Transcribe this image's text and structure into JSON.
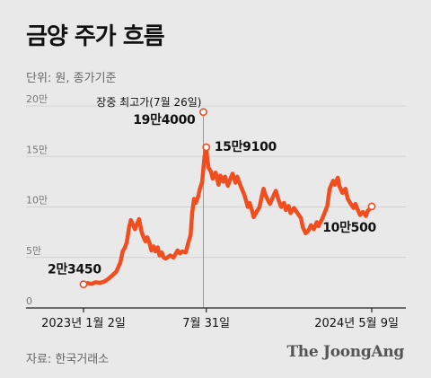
{
  "header": {
    "title": "금양 주가 흐름",
    "unit": "단위: 원, 종가기준"
  },
  "footer": {
    "source": "자료: 한국거래소",
    "logo": "The JoongAng"
  },
  "colors": {
    "line": "#f04e1f",
    "marker_fill": "#ffffff",
    "grid": "#d2d2d2",
    "axis": "#222222",
    "reference_line": "#999999"
  },
  "chart_data": {
    "type": "line",
    "title": "금양 주가 흐름",
    "unit": "단위: 원, 종가기준",
    "y_ticks": [
      {
        "value": 0,
        "label": "0"
      },
      {
        "value": 50000,
        "label": "5만"
      },
      {
        "value": 100000,
        "label": "10만"
      },
      {
        "value": 150000,
        "label": "15만"
      },
      {
        "value": 200000,
        "label": "20만"
      }
    ],
    "ylim": [
      0,
      200000
    ],
    "xlim": [
      "2023-01-02",
      "2024-05-09"
    ],
    "x_ticks": [
      {
        "date": "2023-01-02",
        "label": "2023년 1월 2일"
      },
      {
        "date": "2023-07-31",
        "label": "7월 31일"
      },
      {
        "date": "2024-05-09",
        "label": "2024년 5월 9일"
      }
    ],
    "grid": true,
    "series": [
      {
        "points": [
          [
            "2023-01-02",
            23450
          ],
          [
            "2023-01-09",
            24500
          ],
          [
            "2023-01-16",
            23800
          ],
          [
            "2023-01-23",
            25500
          ],
          [
            "2023-01-30",
            24800
          ],
          [
            "2023-02-06",
            26000
          ],
          [
            "2023-02-13",
            28500
          ],
          [
            "2023-02-20",
            32000
          ],
          [
            "2023-02-27",
            36000
          ],
          [
            "2023-03-06",
            45000
          ],
          [
            "2023-03-10",
            56000
          ],
          [
            "2023-03-14",
            60000
          ],
          [
            "2023-03-17",
            65000
          ],
          [
            "2023-03-21",
            80000
          ],
          [
            "2023-03-24",
            87000
          ],
          [
            "2023-03-28",
            82000
          ],
          [
            "2023-03-31",
            78000
          ],
          [
            "2023-04-04",
            84000
          ],
          [
            "2023-04-07",
            88000
          ],
          [
            "2023-04-11",
            76000
          ],
          [
            "2023-04-14",
            71000
          ],
          [
            "2023-04-18",
            66000
          ],
          [
            "2023-04-21",
            70000
          ],
          [
            "2023-04-25",
            64000
          ],
          [
            "2023-04-28",
            57000
          ],
          [
            "2023-05-02",
            61000
          ],
          [
            "2023-05-05",
            56000
          ],
          [
            "2023-05-09",
            60000
          ],
          [
            "2023-05-12",
            52000
          ],
          [
            "2023-05-16",
            55000
          ],
          [
            "2023-05-19",
            50000
          ],
          [
            "2023-05-23",
            49000
          ],
          [
            "2023-05-30",
            52000
          ],
          [
            "2023-06-05",
            50000
          ],
          [
            "2023-06-12",
            57000
          ],
          [
            "2023-06-16",
            54000
          ],
          [
            "2023-06-20",
            56000
          ],
          [
            "2023-06-26",
            55000
          ],
          [
            "2023-06-30",
            64000
          ],
          [
            "2023-07-04",
            72000
          ],
          [
            "2023-07-07",
            95000
          ],
          [
            "2023-07-10",
            108000
          ],
          [
            "2023-07-13",
            104000
          ],
          [
            "2023-07-17",
            110000
          ],
          [
            "2023-07-20",
            118000
          ],
          [
            "2023-07-24",
            125000
          ],
          [
            "2023-07-26",
            138000
          ],
          [
            "2023-07-28",
            150000
          ],
          [
            "2023-07-31",
            159100
          ],
          [
            "2023-08-02",
            146000
          ],
          [
            "2023-08-04",
            139000
          ],
          [
            "2023-08-08",
            135000
          ],
          [
            "2023-08-11",
            128000
          ],
          [
            "2023-08-16",
            134000
          ],
          [
            "2023-08-21",
            122000
          ],
          [
            "2023-08-24",
            131000
          ],
          [
            "2023-08-29",
            125000
          ],
          [
            "2023-09-01",
            130000
          ],
          [
            "2023-09-06",
            121000
          ],
          [
            "2023-09-11",
            129000
          ],
          [
            "2023-09-14",
            133000
          ],
          [
            "2023-09-19",
            124000
          ],
          [
            "2023-09-22",
            130000
          ],
          [
            "2023-09-27",
            122000
          ],
          [
            "2023-10-04",
            112000
          ],
          [
            "2023-10-10",
            100000
          ],
          [
            "2023-10-13",
            104000
          ],
          [
            "2023-10-17",
            97000
          ],
          [
            "2023-10-20",
            90000
          ],
          [
            "2023-10-25",
            95000
          ],
          [
            "2023-10-30",
            100000
          ],
          [
            "2023-11-02",
            108000
          ],
          [
            "2023-11-06",
            118000
          ],
          [
            "2023-11-09",
            112000
          ],
          [
            "2023-11-14",
            106000
          ],
          [
            "2023-11-17",
            103000
          ],
          [
            "2023-11-22",
            110000
          ],
          [
            "2023-11-27",
            116000
          ],
          [
            "2023-12-01",
            108000
          ],
          [
            "2023-12-06",
            100000
          ],
          [
            "2023-12-11",
            104000
          ],
          [
            "2023-12-14",
            97000
          ],
          [
            "2023-12-19",
            101000
          ],
          [
            "2023-12-22",
            94000
          ],
          [
            "2023-12-28",
            99000
          ],
          [
            "2024-01-04",
            93000
          ],
          [
            "2024-01-09",
            89000
          ],
          [
            "2024-01-12",
            80000
          ],
          [
            "2024-01-17",
            74000
          ],
          [
            "2024-01-22",
            77000
          ],
          [
            "2024-01-26",
            82000
          ],
          [
            "2024-01-31",
            78000
          ],
          [
            "2024-02-05",
            85000
          ],
          [
            "2024-02-08",
            81000
          ],
          [
            "2024-02-14",
            88000
          ],
          [
            "2024-02-19",
            95000
          ],
          [
            "2024-02-23",
            101000
          ],
          [
            "2024-02-27",
            118000
          ],
          [
            "2024-03-04",
            126000
          ],
          [
            "2024-03-07",
            122000
          ],
          [
            "2024-03-12",
            129000
          ],
          [
            "2024-03-15",
            120000
          ],
          [
            "2024-03-20",
            114000
          ],
          [
            "2024-03-25",
            118000
          ],
          [
            "2024-03-29",
            108000
          ],
          [
            "2024-04-03",
            103000
          ],
          [
            "2024-04-08",
            99000
          ],
          [
            "2024-04-11",
            103000
          ],
          [
            "2024-04-16",
            96000
          ],
          [
            "2024-04-19",
            92000
          ],
          [
            "2024-04-24",
            95000
          ],
          [
            "2024-04-29",
            91000
          ],
          [
            "2024-05-02",
            96000
          ],
          [
            "2024-05-07",
            99000
          ],
          [
            "2024-05-09",
            100500
          ]
        ]
      }
    ],
    "annotations": [
      {
        "date": "2023-01-02",
        "value": 23450,
        "label": "2만3450"
      },
      {
        "date": "2023-07-31",
        "value": 159100,
        "label": "15만9100"
      },
      {
        "date": "2024-05-09",
        "value": 100500,
        "label": "10만500"
      },
      {
        "date": "2023-07-26",
        "value": 194000,
        "label": "장중 최고가(7월 26일)",
        "value_label": "19만4000"
      }
    ]
  }
}
